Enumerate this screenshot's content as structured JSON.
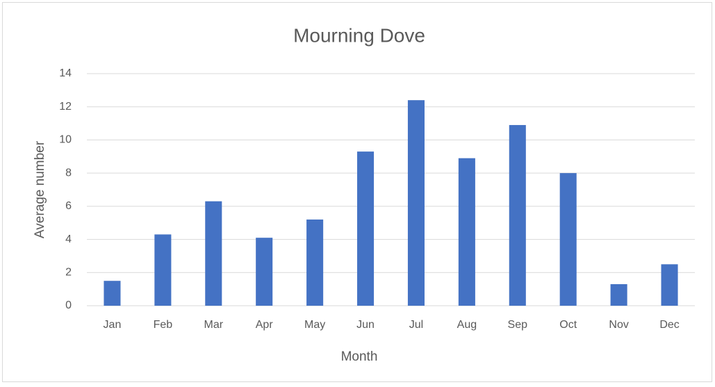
{
  "chart_data": {
    "type": "bar",
    "title": "Mourning Dove",
    "x_label": "Month",
    "y_label": "Average number",
    "categories": [
      "Jan",
      "Feb",
      "Mar",
      "Apr",
      "May",
      "Jun",
      "Jul",
      "Aug",
      "Sep",
      "Oct",
      "Nov",
      "Dec"
    ],
    "values": [
      1.5,
      4.3,
      6.3,
      4.1,
      5.2,
      9.3,
      12.4,
      8.9,
      10.9,
      8.0,
      1.3,
      2.5
    ],
    "color": "#4472c4",
    "ylim": [
      0,
      14
    ],
    "yticks": [
      0,
      2,
      4,
      6,
      8,
      10,
      12,
      14
    ],
    "grid": true
  }
}
